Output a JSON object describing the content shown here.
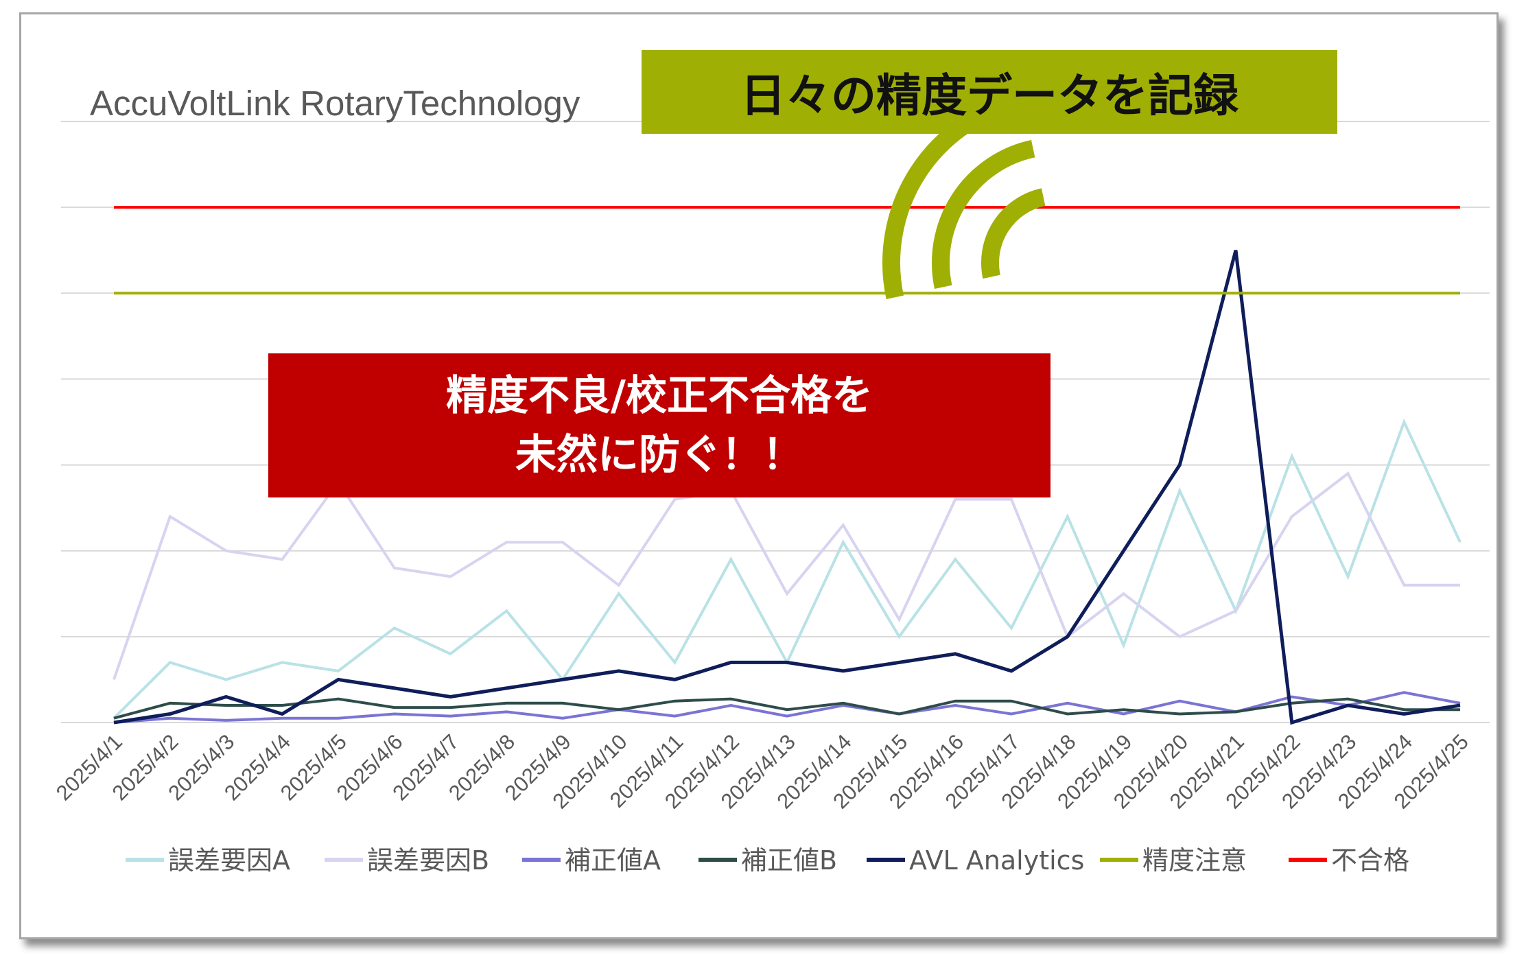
{
  "header_banner": "日々の精度データを記録",
  "callout": {
    "line1": "精度不良/校正不合格を",
    "line2": "未然に防ぐ！！"
  },
  "colors": {
    "banner_bg": "#a0af04",
    "callout_bg": "#c00000",
    "signal_icon": "#a0af04"
  },
  "icons": [
    "signal-waves-icon"
  ],
  "chart_data": {
    "type": "line",
    "title": "AccuVoltLink RotaryTechnology",
    "ylim": [
      0,
      14
    ],
    "y_gridlines": [
      0,
      2,
      4,
      6,
      8,
      10,
      12,
      14
    ],
    "grid": "horizontal",
    "legend_position": "bottom",
    "x": [
      "2025/4/1",
      "2025/4/2",
      "2025/4/3",
      "2025/4/4",
      "2025/4/5",
      "2025/4/6",
      "2025/4/7",
      "2025/4/8",
      "2025/4/9",
      "2025/4/10",
      "2025/4/11",
      "2025/4/12",
      "2025/4/13",
      "2025/4/14",
      "2025/4/15",
      "2025/4/16",
      "2025/4/17",
      "2025/4/18",
      "2025/4/19",
      "2025/4/20",
      "2025/4/21",
      "2025/4/22",
      "2025/4/23",
      "2025/4/24",
      "2025/4/25"
    ],
    "series": [
      {
        "name": "誤差要因A",
        "color": "#b9e2e6",
        "values": [
          0.1,
          1.4,
          1.0,
          1.4,
          1.2,
          2.2,
          1.6,
          2.6,
          1.0,
          3.0,
          1.4,
          3.8,
          1.4,
          4.2,
          2.0,
          3.8,
          2.2,
          4.8,
          1.8,
          5.4,
          2.6,
          6.2,
          3.4,
          7.0,
          4.2
        ]
      },
      {
        "name": "誤差要因B",
        "color": "#d6d4f0",
        "values": [
          1.0,
          4.8,
          4.0,
          3.8,
          5.6,
          3.6,
          3.4,
          4.2,
          4.2,
          3.2,
          5.2,
          5.4,
          3.0,
          4.6,
          2.4,
          5.2,
          5.2,
          2.0,
          3.0,
          2.0,
          2.6,
          4.8,
          5.8,
          3.2,
          3.2
        ]
      },
      {
        "name": "補正値A",
        "color": "#7b74d4",
        "values": [
          0.0,
          0.1,
          0.05,
          0.1,
          0.1,
          0.2,
          0.15,
          0.25,
          0.1,
          0.3,
          0.15,
          0.4,
          0.15,
          0.4,
          0.2,
          0.4,
          0.2,
          0.45,
          0.2,
          0.5,
          0.25,
          0.6,
          0.4,
          0.7,
          0.45
        ]
      },
      {
        "name": "補正値B",
        "color": "#2e4d4a",
        "values": [
          0.1,
          0.45,
          0.4,
          0.4,
          0.55,
          0.35,
          0.35,
          0.45,
          0.45,
          0.3,
          0.5,
          0.55,
          0.3,
          0.45,
          0.2,
          0.5,
          0.5,
          0.2,
          0.3,
          0.2,
          0.25,
          0.45,
          0.55,
          0.3,
          0.3
        ]
      },
      {
        "name": "AVL Analytics",
        "color": "#0f1d5a",
        "values": [
          0.0,
          0.2,
          0.6,
          0.2,
          1.0,
          0.8,
          0.6,
          0.8,
          1.0,
          1.2,
          1.0,
          1.4,
          1.4,
          1.2,
          1.4,
          1.6,
          1.2,
          2.0,
          4.0,
          6.0,
          11.0,
          0.0,
          0.4,
          0.2,
          0.4
        ]
      },
      {
        "name": "精度注意",
        "color": "#a0af04",
        "values": [
          10,
          10,
          10,
          10,
          10,
          10,
          10,
          10,
          10,
          10,
          10,
          10,
          10,
          10,
          10,
          10,
          10,
          10,
          10,
          10,
          10,
          10,
          10,
          10,
          10
        ]
      },
      {
        "name": "不合格",
        "color": "#ff0000",
        "values": [
          12,
          12,
          12,
          12,
          12,
          12,
          12,
          12,
          12,
          12,
          12,
          12,
          12,
          12,
          12,
          12,
          12,
          12,
          12,
          12,
          12,
          12,
          12,
          12,
          12
        ]
      }
    ]
  }
}
